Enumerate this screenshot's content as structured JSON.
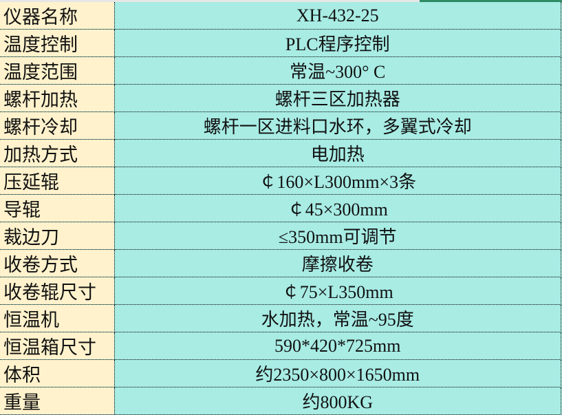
{
  "colors": {
    "label_bg": "#fff2cc",
    "value_bg": "#a8ece4",
    "selection": "#2e8b64"
  },
  "rows": [
    {
      "label": "仪器名称",
      "value": "XH-432-25"
    },
    {
      "label": "温度控制",
      "value": "PLC程序控制"
    },
    {
      "label": "温度范围",
      "value": "常温~300° C"
    },
    {
      "label": "螺杆加热",
      "value": "螺杆三区加热器"
    },
    {
      "label": "螺杆冷却",
      "value": "螺杆一区进料口水环，多翼式冷却"
    },
    {
      "label": "加热方式",
      "value": "电加热"
    },
    {
      "label": "压延辊",
      "value": "￠160×L300mm×3条"
    },
    {
      "label": "导辊",
      "value": "￠45×300mm"
    },
    {
      "label": "裁边刀",
      "value": "≤350mm可调节"
    },
    {
      "label": "收卷方式",
      "value": "摩擦收卷"
    },
    {
      "label": "收卷辊尺寸",
      "value": "￠75×L350mm"
    },
    {
      "label": "恒温机",
      "value": "水加热，常温~95度"
    },
    {
      "label": "恒温箱尺寸",
      "value": "590*420*725mm"
    },
    {
      "label": "体积",
      "value": "约2350×800×1650mm"
    },
    {
      "label": "重量",
      "value": "约800KG"
    }
  ]
}
